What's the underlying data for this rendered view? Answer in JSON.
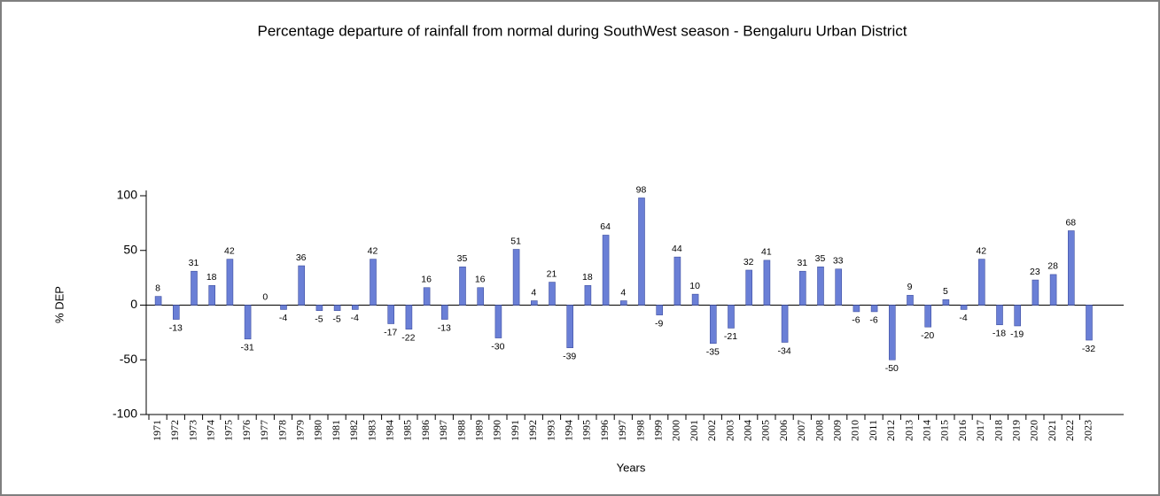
{
  "chart_data": {
    "type": "bar",
    "title": "Percentage departure of rainfall from normal during SouthWest season - Bengaluru Urban District",
    "x_label": "Years",
    "y_label": "% DEP",
    "categories": [
      "1971",
      "1972",
      "1973",
      "1974",
      "1975",
      "1976",
      "1977",
      "1978",
      "1979",
      "1980",
      "1981",
      "1982",
      "1983",
      "1984",
      "1985",
      "1986",
      "1987",
      "1988",
      "1989",
      "1990",
      "1991",
      "1992",
      "1993",
      "1994",
      "1995",
      "1996",
      "1997",
      "1998",
      "1999",
      "2000",
      "2001",
      "2002",
      "2003",
      "2004",
      "2005",
      "2006",
      "2007",
      "2008",
      "2009",
      "2010",
      "2011",
      "2012",
      "2013",
      "2014",
      "2015",
      "2016",
      "2017",
      "2018",
      "2019",
      "2020",
      "2021",
      "2022",
      "2023"
    ],
    "values": [
      8,
      -13,
      31,
      18,
      42,
      -31,
      0,
      -4,
      36,
      -5,
      -5,
      -4,
      42,
      -17,
      -22,
      16,
      -13,
      35,
      16,
      -30,
      51,
      4,
      21,
      -39,
      18,
      64,
      4,
      98,
      -9,
      44,
      10,
      -35,
      -21,
      32,
      41,
      -34,
      31,
      35,
      33,
      -6,
      -6,
      -50,
      9,
      -20,
      5,
      -4,
      42,
      -18,
      -19,
      23,
      28,
      68,
      -32
    ],
    "color": "#6a7fd6",
    "ylim": [
      -100,
      100
    ],
    "yticks": [
      -100,
      -50,
      0,
      50,
      100
    ]
  }
}
